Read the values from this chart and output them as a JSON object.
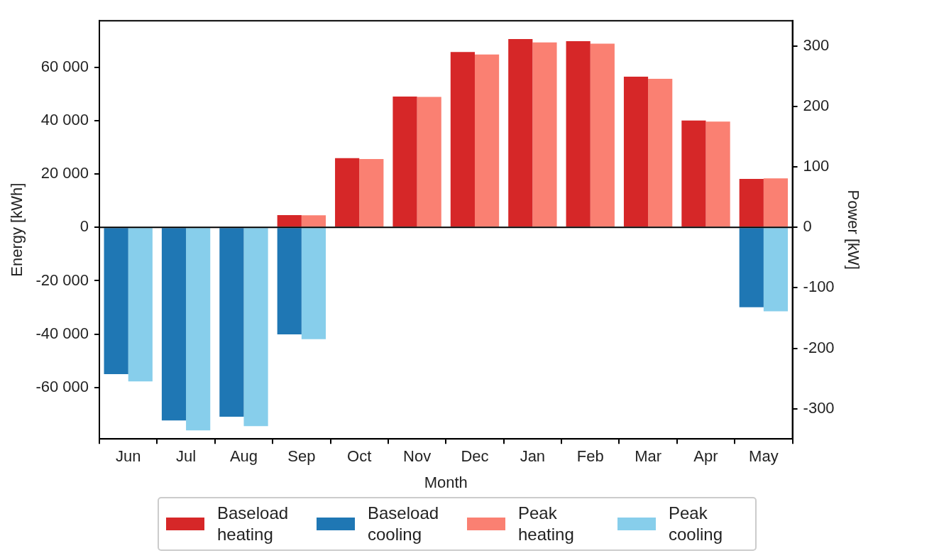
{
  "chart_data": {
    "type": "bar",
    "xlabel": "Month",
    "ylabel": "Energy [kWh]",
    "y2label": "Power [kW]",
    "categories": [
      "Jun",
      "Jul",
      "Aug",
      "Sep",
      "Oct",
      "Nov",
      "Dec",
      "Jan",
      "Feb",
      "Mar",
      "Apr",
      "May"
    ],
    "stacked": true,
    "series": [
      {
        "name": "Baseload heating",
        "color": "#d62728",
        "values": [
          0,
          0,
          0,
          4600,
          26000,
          49100,
          65800,
          70600,
          69800,
          56500,
          40100,
          18200
        ]
      },
      {
        "name": "Baseload cooling",
        "color": "#1f77b4",
        "values": [
          -55000,
          -72400,
          -71000,
          -40100,
          0,
          0,
          0,
          0,
          0,
          0,
          0,
          -29900
        ]
      },
      {
        "name": "Peak heating",
        "color": "#fa8072",
        "axis": "y2",
        "values": [
          0,
          0,
          0,
          20,
          113,
          216,
          286,
          306,
          304,
          246,
          175,
          81
        ]
      },
      {
        "name": "Peak cooling",
        "color": "#87ceeb",
        "axis": "y2",
        "values": [
          -255,
          -336,
          -329,
          -185,
          0,
          0,
          0,
          0,
          0,
          0,
          0,
          -139
        ]
      }
    ],
    "ylim": [
      -79300,
      77500
    ],
    "yticks": [
      {
        "value": -60000,
        "label": "-60 000"
      },
      {
        "value": -40000,
        "label": "-40 000"
      },
      {
        "value": -20000,
        "label": "-20 000"
      },
      0,
      {
        "value": 20000,
        "label": "20 000"
      },
      {
        "value": 40000,
        "label": "40 000"
      },
      {
        "value": 60000,
        "label": "60 000"
      }
    ],
    "y2lim": [
      -350,
      342
    ],
    "y2ticks": [
      -300,
      -200,
      -100,
      0,
      100,
      200,
      300
    ],
    "ref_lines": [
      {
        "axis": "y",
        "value": 0,
        "color": "#000000"
      }
    ],
    "grid": false,
    "legend": "bottom"
  }
}
